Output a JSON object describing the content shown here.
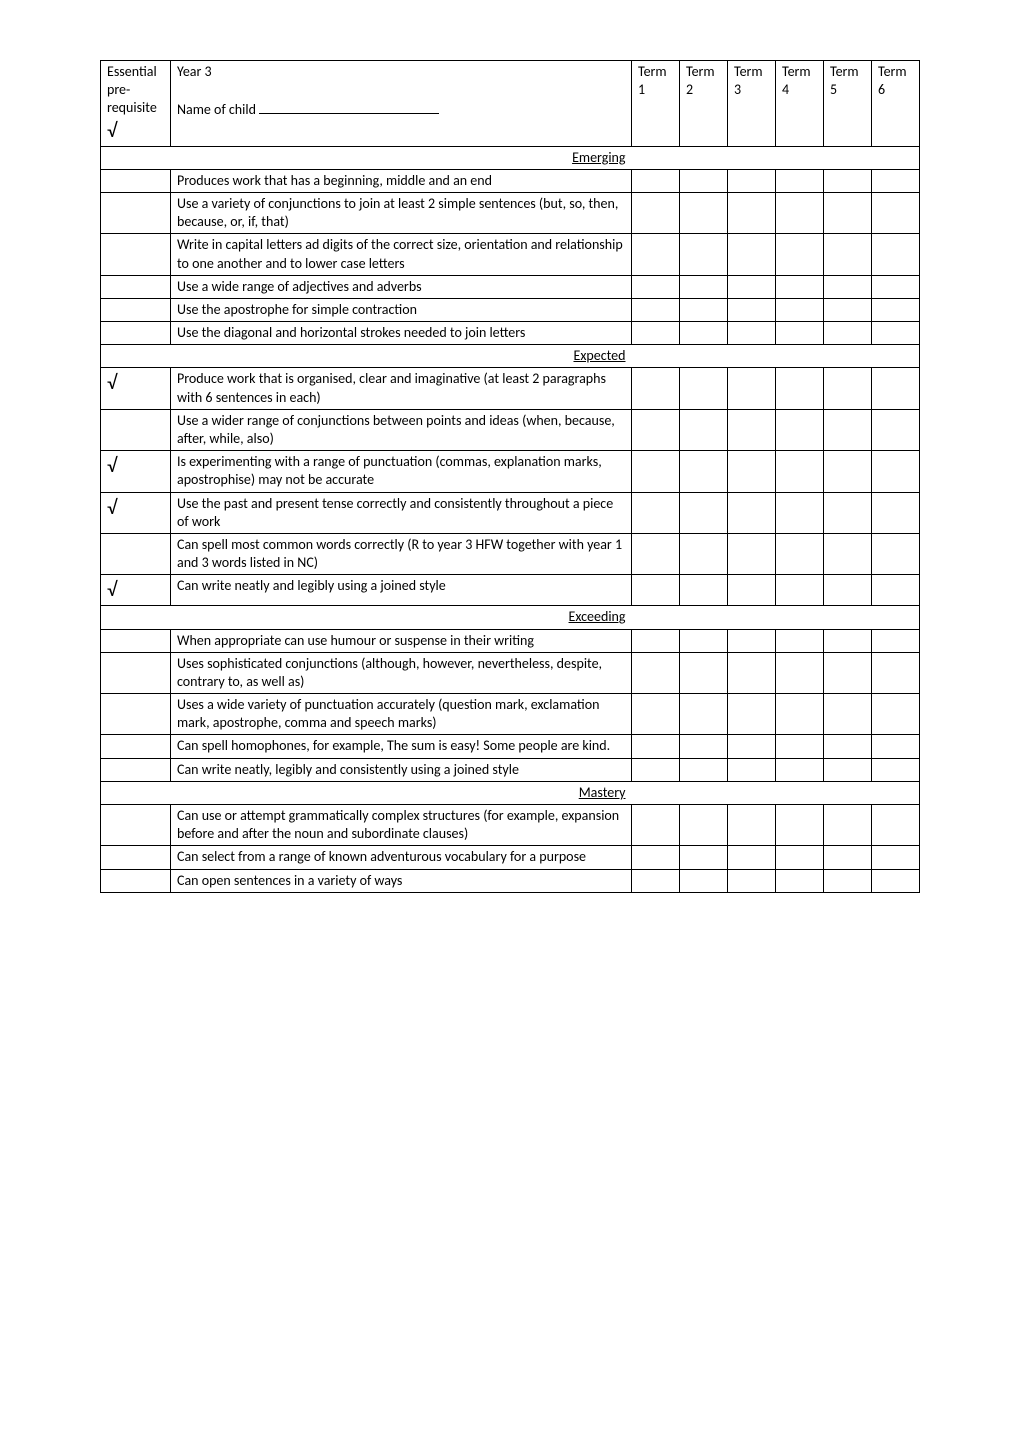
{
  "header": {
    "pre_label_line1": "Essential",
    "pre_label_line2": "pre-",
    "pre_label_line3": "requisite",
    "check": "√",
    "year": "Year 3",
    "name_label": "Name of child",
    "terms": [
      "Term 1",
      "Term 2",
      "Term 3",
      "Term 4",
      "Term 5",
      "Term 6"
    ]
  },
  "sections": [
    {
      "title": "Emerging",
      "rows": [
        {
          "pre": "",
          "desc": "Produces work that has a beginning, middle and an end"
        },
        {
          "pre": "",
          "desc": "Use a variety of conjunctions to join at least 2 simple sentences (but, so, then, because, or, if, that)"
        },
        {
          "pre": "",
          "desc": "Write in capital letters ad digits of the correct size, orientation and relationship to one another and to lower case letters"
        },
        {
          "pre": "",
          "desc": "Use a wide range of adjectives and adverbs"
        },
        {
          "pre": "",
          "desc": "Use the apostrophe for simple contraction"
        },
        {
          "pre": "",
          "desc": "Use the diagonal and horizontal strokes needed to join letters"
        }
      ]
    },
    {
      "title": "Expected",
      "rows": [
        {
          "pre": "√",
          "desc": "Produce work that is organised, clear and imaginative (at least 2 paragraphs with 6 sentences in each)"
        },
        {
          "pre": "",
          "desc": "Use a wider range of conjunctions between points and ideas (when, because, after, while, also)"
        },
        {
          "pre": "√",
          "desc": "Is experimenting with a range of punctuation (commas, explanation marks, apostrophise) may not be accurate"
        },
        {
          "pre": "√",
          "desc": "Use the past and present tense correctly and consistently throughout a piece of work"
        },
        {
          "pre": "",
          "desc": "Can spell most common words correctly (R to year 3 HFW together with year 1 and 3 words listed in NC)"
        },
        {
          "pre": "√",
          "desc": "Can write neatly and legibly using a joined style"
        }
      ]
    },
    {
      "title": "Exceeding",
      "rows": [
        {
          "pre": "",
          "desc": "When appropriate can use humour or suspense in their writing"
        },
        {
          "pre": "",
          "desc": "Uses sophisticated conjunctions (although, however, nevertheless, despite, contrary to, as well as)"
        },
        {
          "pre": "",
          "desc": "Uses a wide variety of punctuation accurately (question mark, exclamation mark, apostrophe, comma and speech marks)"
        },
        {
          "pre": "",
          "desc": "Can spell homophones, for example, The sum is easy! Some people are kind."
        },
        {
          "pre": "",
          "desc": "Can write neatly, legibly and consistently using a joined style"
        }
      ]
    },
    {
      "title": "Mastery",
      "rows": [
        {
          "pre": "",
          "desc": "Can use or attempt grammatically complex structures (for example, expansion before and after the noun and subordinate clauses)"
        },
        {
          "pre": "",
          "desc": "Can select  from a range of known adventurous vocabulary for a purpose"
        },
        {
          "pre": "",
          "desc": "Can open sentences in a variety of ways"
        }
      ]
    }
  ]
}
